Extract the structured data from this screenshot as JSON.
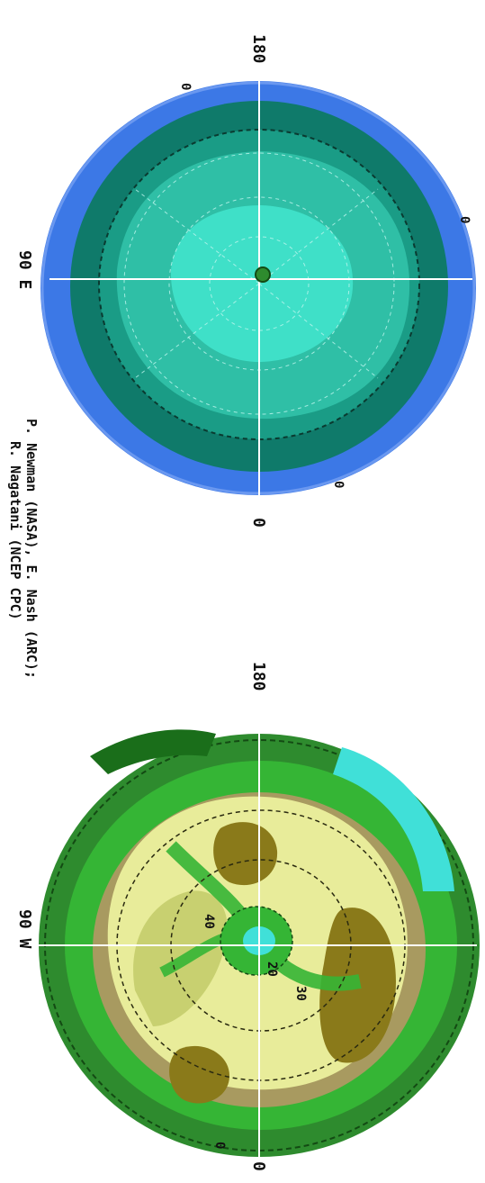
{
  "top_map": {
    "labels": {
      "lon_180": "180",
      "lon_90e": "90 E",
      "lon_0": "0",
      "contour_a": "0",
      "contour_b": "0",
      "contour_c": "0"
    },
    "colors": {
      "outer_ring": "#3c78e6",
      "dark_band": "#0f7a6a",
      "mid_band": "#1a9c86",
      "inner": "#2fbfa6",
      "core": "#3fe0c8"
    }
  },
  "bottom_map": {
    "labels": {
      "lon_180": "180",
      "lon_90w": "90 W",
      "lon_0": "0",
      "contour_40": "40",
      "contour_20": "20",
      "contour_30": "30",
      "contour_50": "0"
    },
    "colors": {
      "outer_green": "#2e8b2e",
      "bright_green": "#35b535",
      "light_yellow": "#e8ec9a",
      "olive": "#8a7a1a",
      "tan": "#a89a60",
      "cyan": "#40e0d8"
    }
  },
  "credit": {
    "line1": "P. Newman (NASA), E. Nash (ARC);",
    "line2": "R. Nagatani (NCEP CPC)"
  }
}
